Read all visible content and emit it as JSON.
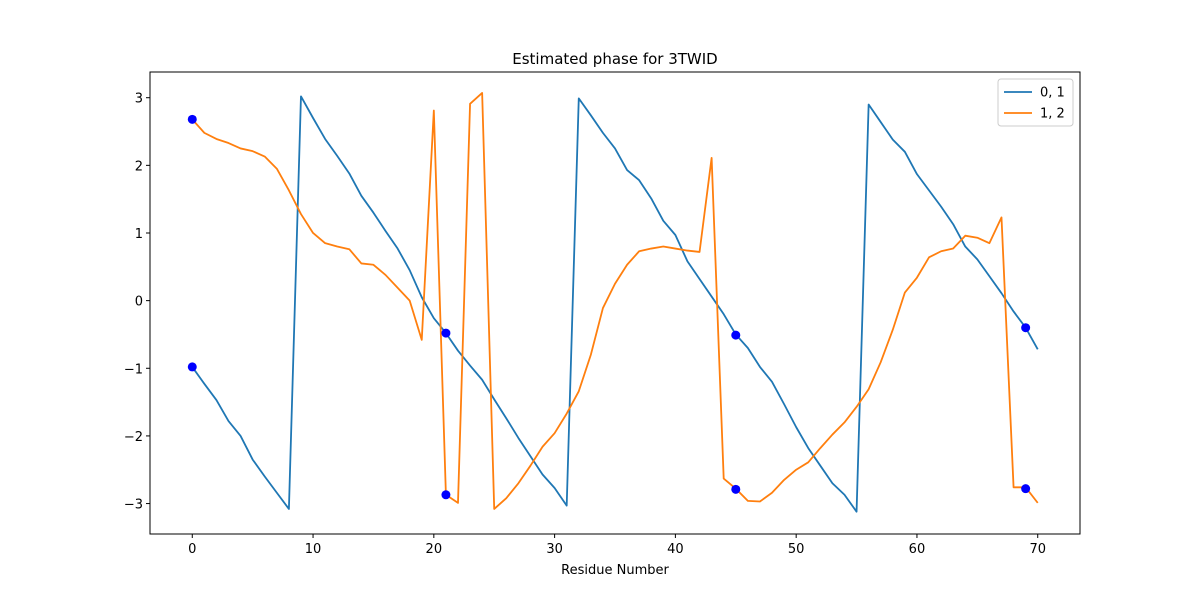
{
  "chart_data": {
    "type": "line",
    "title": "Estimated phase for 3TWID",
    "xlabel": "Residue Number",
    "ylabel": "",
    "xlim": [
      -3.5,
      73.5
    ],
    "ylim": [
      -3.45,
      3.38
    ],
    "xticks": [
      0,
      10,
      20,
      30,
      40,
      50,
      60,
      70
    ],
    "yticks": [
      -3,
      -2,
      -1,
      0,
      1,
      2,
      3
    ],
    "ytick_labels": [
      "−3",
      "−2",
      "−1",
      "0",
      "1",
      "2",
      "3"
    ],
    "grid": false,
    "legend": "top-right",
    "series": [
      {
        "name": "0, 1",
        "color": "#1f77b4",
        "x": [
          0,
          1,
          2,
          3,
          4,
          5,
          6,
          7,
          8,
          9,
          10,
          11,
          12,
          13,
          14,
          15,
          16,
          17,
          18,
          19,
          20,
          21,
          22,
          23,
          24,
          25,
          26,
          27,
          28,
          29,
          30,
          31,
          32,
          33,
          34,
          35,
          36,
          37,
          38,
          39,
          40,
          41,
          42,
          43,
          44,
          45,
          46,
          47,
          48,
          49,
          50,
          51,
          52,
          53,
          54,
          55,
          56,
          57,
          58,
          59,
          60,
          61,
          62,
          63,
          64,
          65,
          66,
          67,
          68,
          69,
          70
        ],
        "y": [
          -0.98,
          -1.23,
          -1.47,
          -1.78,
          -2.0,
          -2.35,
          -2.6,
          -2.84,
          -3.08,
          3.02,
          2.7,
          2.39,
          2.14,
          1.88,
          1.55,
          1.3,
          1.03,
          0.77,
          0.45,
          0.05,
          -0.26,
          -0.48,
          -0.74,
          -0.96,
          -1.17,
          -1.46,
          -1.74,
          -2.03,
          -2.3,
          -2.57,
          -2.77,
          -3.03,
          2.99,
          2.74,
          2.48,
          2.25,
          1.93,
          1.78,
          1.51,
          1.18,
          0.97,
          0.58,
          0.32,
          0.06,
          -0.2,
          -0.5,
          -0.7,
          -0.98,
          -1.2,
          -1.53,
          -1.87,
          -2.18,
          -2.44,
          -2.7,
          -2.87,
          -3.12,
          2.9,
          2.64,
          2.38,
          2.2,
          1.87,
          1.63,
          1.39,
          1.13,
          0.8,
          0.61,
          0.36,
          0.11,
          -0.16,
          -0.4,
          -0.72
        ]
      },
      {
        "name": "1, 2",
        "color": "#ff7f0e",
        "x": [
          0,
          1,
          2,
          3,
          4,
          5,
          6,
          7,
          8,
          9,
          10,
          11,
          12,
          13,
          14,
          15,
          16,
          17,
          18,
          19,
          20,
          21,
          22,
          23,
          24,
          25,
          26,
          27,
          28,
          29,
          30,
          31,
          32,
          33,
          34,
          35,
          36,
          37,
          38,
          39,
          40,
          41,
          42,
          43,
          44,
          45,
          46,
          47,
          48,
          49,
          50,
          51,
          52,
          53,
          54,
          55,
          56,
          57,
          58,
          59,
          60,
          61,
          62,
          63,
          64,
          65,
          66,
          67,
          68,
          69,
          70
        ],
        "y": [
          2.68,
          2.48,
          2.39,
          2.33,
          2.25,
          2.21,
          2.13,
          1.95,
          1.63,
          1.28,
          1.0,
          0.85,
          0.8,
          0.76,
          0.55,
          0.53,
          0.38,
          0.19,
          0.0,
          -0.58,
          2.81,
          -2.87,
          -2.99,
          2.91,
          3.07,
          -3.08,
          -2.92,
          -2.7,
          -2.44,
          -2.16,
          -1.96,
          -1.67,
          -1.34,
          -0.8,
          -0.11,
          0.25,
          0.53,
          0.73,
          0.77,
          0.8,
          0.77,
          0.74,
          0.72,
          2.11,
          -2.63,
          -2.78,
          -2.96,
          -2.97,
          -2.84,
          -2.65,
          -2.5,
          -2.39,
          -2.18,
          -1.98,
          -1.8,
          -1.57,
          -1.31,
          -0.91,
          -0.43,
          0.12,
          0.34,
          0.64,
          0.73,
          0.77,
          0.96,
          0.93,
          0.85,
          1.23,
          -2.76,
          -2.76,
          -2.99
        ]
      }
    ],
    "markers": {
      "color": "#0000ff",
      "x": [
        0,
        0,
        21,
        21,
        45,
        45,
        69,
        69
      ],
      "y": [
        2.68,
        -0.98,
        -0.48,
        -2.87,
        -0.51,
        -2.79,
        -0.4,
        -2.78
      ]
    }
  }
}
